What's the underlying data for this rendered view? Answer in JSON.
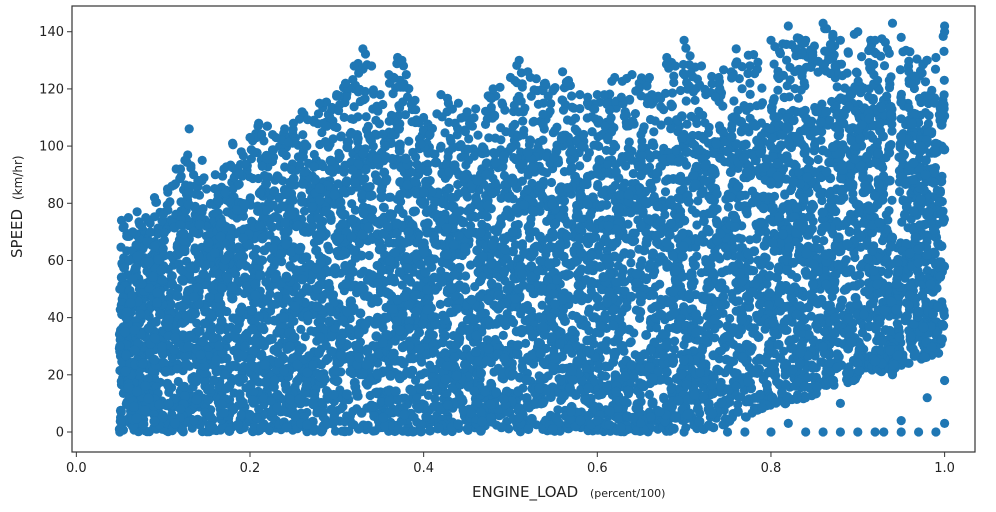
{
  "chart_data": {
    "type": "scatter",
    "title": "",
    "xlabel": "ENGINE_LOAD",
    "xlabel_unit": "(percent/100)",
    "ylabel": "SPEED",
    "ylabel_unit": "(km/hr)",
    "xlim": [
      -0.005,
      1.035
    ],
    "ylim": [
      -7,
      149
    ],
    "xticks": [
      0.0,
      0.2,
      0.4,
      0.6,
      0.8,
      1.0
    ],
    "xtick_labels": [
      "0.0",
      "0.2",
      "0.4",
      "0.6",
      "0.8",
      "1.0"
    ],
    "yticks": [
      0,
      20,
      40,
      60,
      80,
      100,
      120,
      140
    ],
    "ytick_labels": [
      "0",
      "20",
      "40",
      "60",
      "80",
      "100",
      "120",
      "140"
    ],
    "grid": false,
    "legend": "none",
    "marker_color": "#1f77b4",
    "series": [
      {
        "x": [
          0.05,
          0.05,
          0.05,
          0.052,
          0.055,
          0.06,
          0.065,
          0.07,
          0.075,
          0.08,
          0.085,
          0.09,
          0.1,
          0.105,
          0.11,
          0.115,
          0.12,
          0.125,
          0.13,
          0.135,
          0.14,
          0.145,
          0.15,
          0.16,
          0.17,
          0.18,
          0.19,
          0.2,
          0.21,
          0.22,
          0.23,
          0.24,
          0.25,
          0.26,
          0.28,
          0.3,
          0.31,
          0.32,
          0.33,
          0.34,
          0.35,
          0.36,
          0.37,
          0.375,
          0.38,
          0.39,
          0.4,
          0.42,
          0.44,
          0.45,
          0.46,
          0.48,
          0.5,
          0.51,
          0.52,
          0.54,
          0.55,
          0.56,
          0.58,
          0.6,
          0.62,
          0.64,
          0.66,
          0.68,
          0.69,
          0.7,
          0.72,
          0.74,
          0.76,
          0.78,
          0.8,
          0.81,
          0.82,
          0.84,
          0.85,
          0.86,
          0.88,
          0.9,
          0.92,
          0.94,
          0.95,
          0.96,
          0.98,
          0.99,
          1.0,
          1.0,
          0.12,
          0.135,
          0.19,
          0.21,
          0.51,
          0.57,
          0.6,
          0.65,
          0.7,
          0.73,
          0.75,
          0.77,
          0.8,
          0.82,
          0.84,
          0.86,
          0.88,
          0.9,
          0.92,
          0.93,
          0.95,
          0.97,
          0.99,
          1.0,
          0.76,
          0.84,
          0.88,
          0.94,
          0.95,
          0.98,
          1.0
        ],
        "y": [
          0,
          30,
          50,
          74,
          72,
          75,
          70,
          77,
          72,
          75,
          73,
          82,
          76,
          85,
          86,
          92,
          92,
          95,
          106,
          90,
          88,
          95,
          85,
          90,
          92,
          101,
          98,
          103,
          108,
          107,
          103,
          106,
          108,
          112,
          115,
          118,
          122,
          128,
          134,
          128,
          118,
          125,
          131,
          130,
          125,
          116,
          110,
          118,
          115,
          112,
          113,
          120,
          124,
          130,
          126,
          122,
          120,
          126,
          118,
          118,
          124,
          125,
          124,
          131,
          128,
          137,
          128,
          124,
          134,
          132,
          137,
          133,
          142,
          137,
          135,
          143,
          137,
          140,
          137,
          143,
          138,
          133,
          130,
          131,
          142,
          140,
          8,
          4,
          6,
          8,
          5,
          7,
          4,
          3,
          0,
          2,
          0,
          0,
          0,
          3,
          0,
          0,
          0,
          0,
          0,
          0,
          0,
          0,
          0,
          3,
          16,
          12,
          10,
          20,
          4,
          12,
          18
        ]
      }
    ]
  }
}
